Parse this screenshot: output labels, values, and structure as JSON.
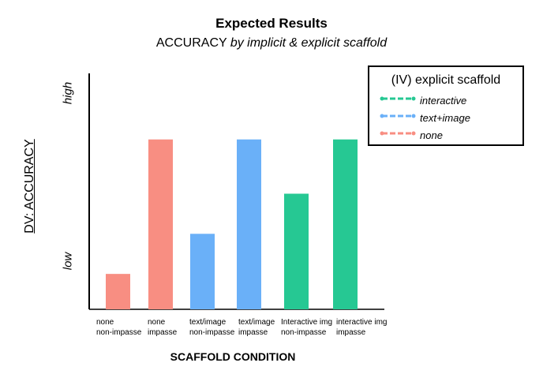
{
  "chart_data": {
    "type": "bar",
    "title": "Expected Results",
    "subtitle_prefix": "ACCURACY ",
    "subtitle_italic": "by implicit & explicit scaffold",
    "xlabel": "SCAFFOLD CONDITION",
    "ylabel": "DV: ACCURACY",
    "ytick_high": "high",
    "ytick_low": "low",
    "ylim": [
      0,
      10
    ],
    "grid": false,
    "legend_position": "top-right",
    "categories": [
      [
        "none",
        "non-impasse"
      ],
      [
        "none",
        "impasse"
      ],
      [
        "text/image",
        "non-impasse"
      ],
      [
        "text/image",
        "impasse"
      ],
      [
        "Interactive img",
        "non-impasse"
      ],
      [
        "interactive img",
        "impasse"
      ]
    ],
    "values": [
      1.5,
      7.2,
      3.2,
      7.2,
      4.9,
      7.2
    ],
    "bar_series": [
      "none",
      "none",
      "text+image",
      "text+image",
      "interactive",
      "interactive"
    ],
    "legend": {
      "title": "(IV) explicit scaffold",
      "items": [
        {
          "key": "interactive",
          "label": "interactive",
          "color": "#26c893"
        },
        {
          "key": "text+image",
          "label": "text+image",
          "color": "#6ab0f8"
        },
        {
          "key": "none",
          "label": "none",
          "color": "#f88e82"
        }
      ]
    }
  }
}
